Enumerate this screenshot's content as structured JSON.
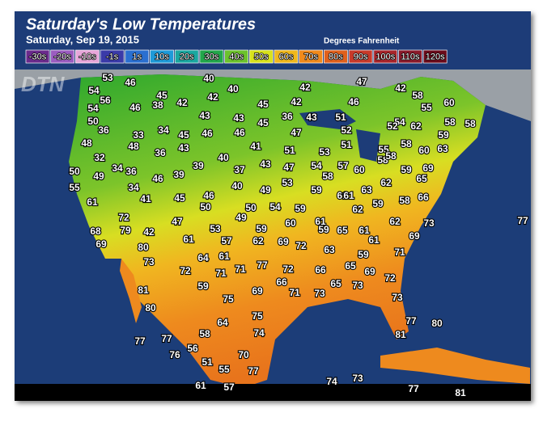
{
  "header": {
    "title": "Saturday's Low Temperatures",
    "date": "Saturday, Sep 19, 2015",
    "units": "Degrees Fahrenheit"
  },
  "legend": [
    {
      "label": "-30s",
      "color": "#6a2a8c"
    },
    {
      "label": "-20s",
      "color": "#9b5cc0"
    },
    {
      "label": "-10s",
      "color": "#e7a6d9"
    },
    {
      "label": "-1s",
      "color": "#3a3aa8"
    },
    {
      "label": "1s",
      "color": "#2a6fd0"
    },
    {
      "label": "10s",
      "color": "#1e9ad8"
    },
    {
      "label": "20s",
      "color": "#1aa7a0"
    },
    {
      "label": "30s",
      "color": "#22a64a"
    },
    {
      "label": "40s",
      "color": "#6cc22c"
    },
    {
      "label": "50s",
      "color": "#d8e21c"
    },
    {
      "label": "60s",
      "color": "#f0b81c"
    },
    {
      "label": "70s",
      "color": "#f08a1c"
    },
    {
      "label": "80s",
      "color": "#e0601c"
    },
    {
      "label": "90s",
      "color": "#c83a2a"
    },
    {
      "label": "100s",
      "color": "#a8242a"
    },
    {
      "label": "110s",
      "color": "#8a1a2a"
    },
    {
      "label": "120s",
      "color": "#6a0a1a"
    }
  ],
  "logo": "DTN",
  "temperatures": [
    53,
    46,
    40,
    54,
    56,
    45,
    42,
    40,
    42,
    47,
    42,
    58,
    54,
    46,
    38,
    42,
    45,
    42,
    46,
    55,
    60,
    50,
    43,
    43,
    36,
    43,
    51,
    36,
    34,
    45,
    46,
    46,
    45,
    47,
    52,
    54,
    52,
    62,
    58,
    58,
    33,
    48,
    48,
    43,
    41,
    51,
    53,
    51,
    55,
    58,
    60,
    59,
    63,
    36,
    32,
    40,
    34,
    36,
    39,
    37,
    43,
    47,
    54,
    57,
    60,
    58,
    58,
    59,
    69,
    50,
    49,
    46,
    39,
    53,
    58,
    61,
    59,
    65,
    63,
    62,
    55,
    34,
    40,
    49,
    59,
    61,
    58,
    66,
    61,
    41,
    45,
    46,
    50,
    59,
    62,
    54,
    50,
    59,
    49,
    72,
    47,
    60,
    61,
    62,
    73,
    68,
    79,
    42,
    53,
    59,
    65,
    61,
    77,
    69,
    61,
    57,
    62,
    69,
    72,
    61,
    69,
    80,
    63,
    59,
    71,
    73,
    64,
    61,
    77,
    72,
    71,
    71,
    72,
    66,
    65,
    69,
    72,
    66,
    71,
    65,
    73,
    73,
    59,
    69,
    81,
    75,
    73,
    80,
    75,
    77,
    80,
    64,
    58,
    74,
    81,
    77,
    77,
    56,
    76,
    70,
    51,
    55,
    77,
    74,
    73,
    61,
    57,
    77,
    81
  ]
}
